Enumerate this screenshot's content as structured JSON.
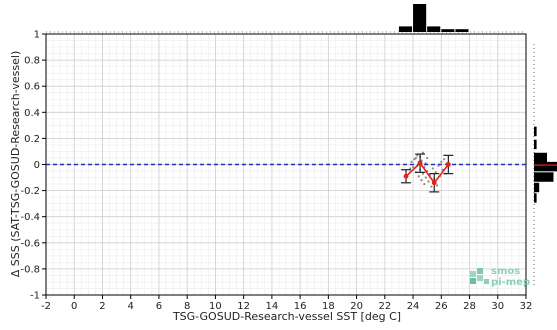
{
  "chart_data": {
    "type": "line",
    "xlabel": "TSG-GOSUD-Research-vessel SST [deg C]",
    "ylabel": "Δ SSS (SAT-TSG-GOSUD-Research-vessel)",
    "xlim": [
      -2,
      32
    ],
    "ylim": [
      -1,
      1
    ],
    "x_ticks": [
      -2,
      0,
      2,
      4,
      6,
      8,
      10,
      12,
      14,
      16,
      18,
      20,
      22,
      24,
      26,
      28,
      30,
      32
    ],
    "y_ticks": [
      -1,
      -0.8,
      -0.6,
      -0.4,
      -0.2,
      0,
      0.2,
      0.4,
      0.6,
      0.8,
      1
    ],
    "grid": true,
    "reference_line": {
      "y": 0,
      "style": "dashed",
      "color": "#1f2fbf"
    },
    "series": [
      {
        "x": [
          23.5,
          24.5,
          25.5,
          26.5
        ],
        "y": [
          -0.09,
          0.01,
          -0.14,
          0.0
        ],
        "err": [
          0.05,
          0.07,
          0.07,
          0.07
        ],
        "color": "#e8201c"
      }
    ],
    "scatter_points": [
      [
        24.0,
        -0.02
      ],
      [
        24.1,
        0.04
      ],
      [
        24.2,
        -0.06
      ],
      [
        24.2,
        0.05
      ],
      [
        24.3,
        -0.01
      ],
      [
        24.3,
        0.07
      ],
      [
        24.4,
        -0.09
      ],
      [
        24.4,
        0.02
      ],
      [
        24.5,
        -0.04
      ],
      [
        24.5,
        0.06
      ],
      [
        24.6,
        -0.12
      ],
      [
        24.6,
        0.03
      ],
      [
        24.7,
        -0.07
      ],
      [
        24.7,
        0.09
      ],
      [
        24.8,
        -0.15
      ],
      [
        24.8,
        -0.02
      ],
      [
        24.9,
        0.01
      ],
      [
        24.9,
        -0.1
      ],
      [
        25.0,
        -0.05
      ],
      [
        25.0,
        0.05
      ],
      [
        25.1,
        -0.13
      ],
      [
        25.2,
        -0.08
      ],
      [
        25.3,
        -0.17
      ],
      [
        25.4,
        -0.03
      ],
      [
        25.5,
        -0.11
      ],
      [
        25.6,
        -0.06
      ],
      [
        25.7,
        -0.16
      ],
      [
        25.8,
        -0.01
      ],
      [
        25.9,
        -0.09
      ],
      [
        26.0,
        0.02
      ],
      [
        26.1,
        -0.04
      ],
      [
        26.2,
        0.04
      ],
      [
        26.3,
        -0.07
      ],
      [
        26.4,
        0.01
      ],
      [
        23.8,
        -0.03
      ],
      [
        23.9,
        0.02
      ]
    ],
    "top_histogram": [
      {
        "x": 23.5,
        "value": 0.2
      },
      {
        "x": 24.5,
        "value": 1.0
      },
      {
        "x": 25.5,
        "value": 0.2
      },
      {
        "x": 26.5,
        "value": 0.1
      },
      {
        "x": 27.5,
        "value": 0.1
      }
    ],
    "right_histogram": [
      {
        "y": 0.25,
        "value": 0.1
      },
      {
        "y": 0.15,
        "value": 0.1
      },
      {
        "y": 0.05,
        "value": 0.5
      },
      {
        "y": -0.02,
        "value": 1.0
      },
      {
        "y": -0.1,
        "value": 0.75
      },
      {
        "y": -0.18,
        "value": 0.2
      },
      {
        "y": -0.26,
        "value": 0.1
      }
    ],
    "right_histogram_mean_color": "#e8201c"
  },
  "logo": {
    "line1": "smos",
    "line2": "pi-mep",
    "color": "#8fcfb6"
  }
}
